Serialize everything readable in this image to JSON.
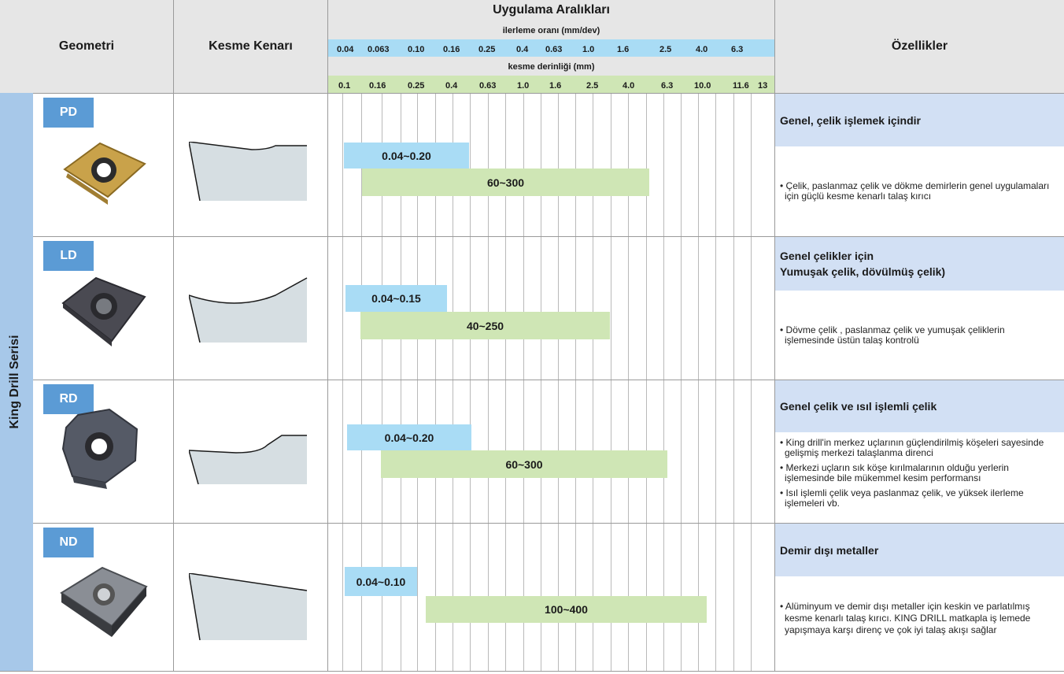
{
  "header": {
    "geometri": "Geometri",
    "kesme_kenari": "Kesme Kenarı",
    "uygulama": "Uygulama Aralıkları",
    "ilerleme": "ilerleme oranı (mm/dev)",
    "kesme_derinligi": "kesme derinliği (mm)",
    "ozellikler": "Özellikler"
  },
  "feed_scale": [
    "0.04",
    "0.063",
    "0.10",
    "0.16",
    "0.25",
    "0.4",
    "0.63",
    "1.0",
    "1.6",
    "2.5",
    "4.0",
    "6.3"
  ],
  "depth_scale": [
    "0.1",
    "0.16",
    "0.25",
    "0.4",
    "0.63",
    "1.0",
    "1.6",
    "2.5",
    "4.0",
    "6.3",
    "10.0",
    "11.6",
    "13"
  ],
  "series_label": "King Drill Serisi",
  "rows": [
    {
      "code": "PD",
      "feed_range": "0.04~0.20",
      "speed_range": "60~300",
      "feature_title": "Genel, çelik işlemek içindir",
      "feature_title_2": "",
      "bullets": [
        "• Çelik, paslanmaz çelik ve dökme demirlerin genel uygulamaları için güçlü kesme kenarlı talaş kırıcı"
      ],
      "insert_color": "#c9a24a"
    },
    {
      "code": "LD",
      "feed_range": "0.04~0.15",
      "speed_range": "40~250",
      "feature_title": "Genel çelikler için",
      "feature_title_2": "Yumuşak çelik, dövülmüş çelik)",
      "bullets": [
        "• Dövme çelik , paslanmaz çelik ve yumuşak çeliklerin işlemesinde üstün talaş kontrolü"
      ],
      "insert_color": "#4a4a52"
    },
    {
      "code": "RD",
      "feed_range": "0.04~0.20",
      "speed_range": "60~300",
      "feature_title": "Genel çelik ve ısıl işlemli çelik",
      "feature_title_2": "",
      "bullets": [
        "• King drill'in merkez uçlarının güçlendirilmiş köşeleri sayesinde gelişmiş merkezi talaşlanma direnci",
        "• Merkezi uçların sık köşe kırılmalarının olduğu yerlerin işlemesinde bile mükemmel kesim performansı",
        "• Isıl işlemli çelik veya paslanmaz çelik, ve yüksek ilerleme işlemeleri vb."
      ],
      "insert_color": "#555a66"
    },
    {
      "code": "ND",
      "feed_range": "0.04~0.10",
      "speed_range": "100~400",
      "feature_title": "Demir dışı metaller",
      "feature_title_2": "",
      "bullets": [
        "• Alüminyum ve demir dışı metaller için keskin ve parlatılmış kesme kenarlı talaş kırıcı. KING DRILL matkapla iş lemede yapışmaya karşı direnç ve çok iyi talaş akışı sağlar"
      ],
      "insert_color": "#6b6f77"
    }
  ]
}
